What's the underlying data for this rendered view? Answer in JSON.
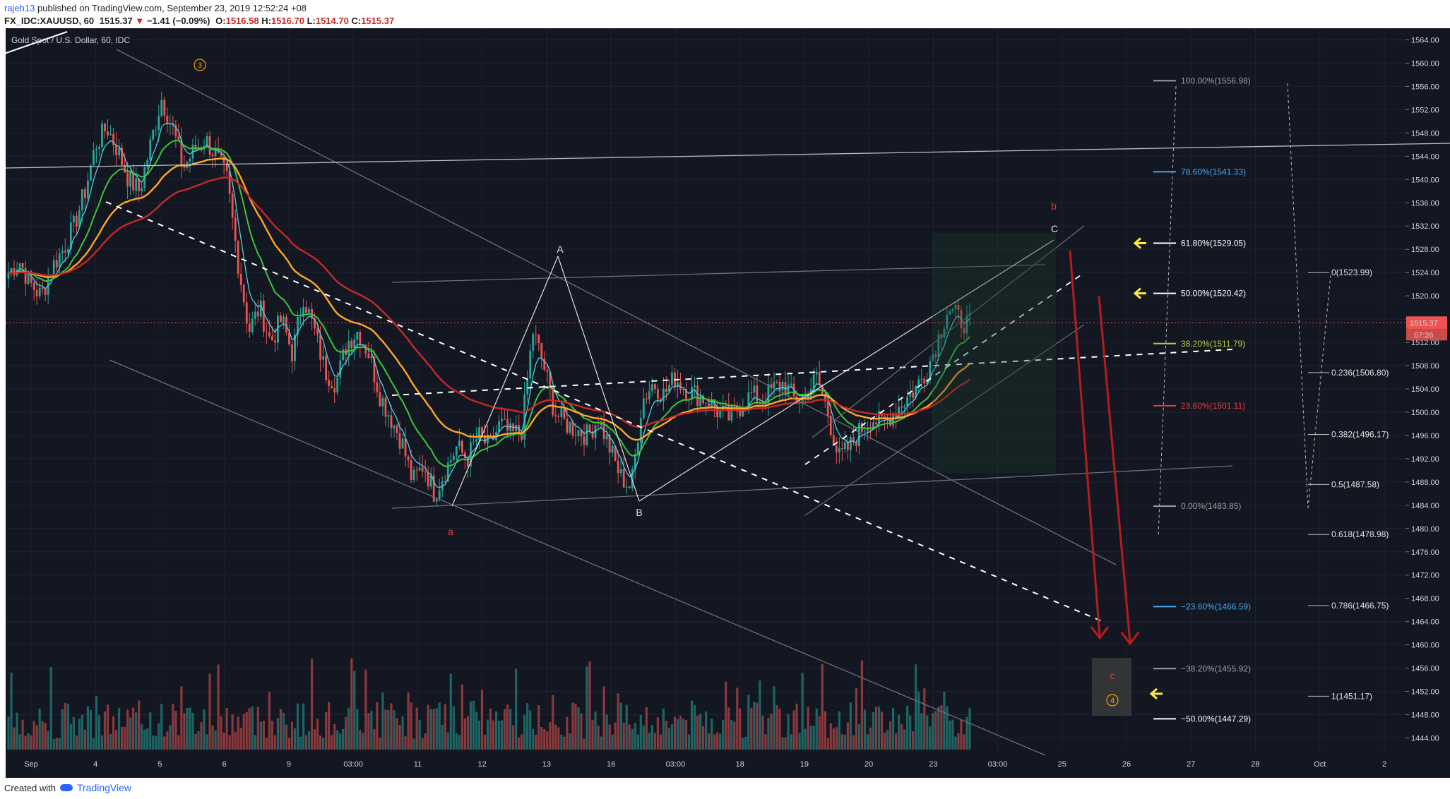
{
  "header": {
    "user": "rajeh13",
    "published": "published on TradingView.com, September 23, 2019 12:52:24 +08",
    "symbol": "FX_IDC:XAUUSD, 60",
    "last": "1515.37",
    "change": "−1.41 (−0.09%)",
    "o_label": "O:",
    "o_value": "1516.58",
    "h_label": "H:",
    "h_value": "1516.70",
    "l_label": "L:",
    "l_value": "1514.70",
    "c_label": "C:",
    "c_value": "1515.37"
  },
  "chart_title": "Gold Spot / U.S. Dollar, 60, IDC",
  "footer": {
    "created_with": "Created with",
    "brand": "TradingView"
  },
  "colors": {
    "background": "#131722",
    "bull": "#26a69a",
    "bear": "#ef5350",
    "ma_cyan": "#4dd0e1",
    "ma_green": "#3ec43e",
    "ma_orange": "#ffa726",
    "ma_red": "#c62828",
    "arrow_red": "#b71c1c",
    "marker_yellow": "#ffeb3b",
    "wave_orange": "#ff9800"
  },
  "chart_data": {
    "type": "candlestick",
    "ylim": [
      1442,
      1566
    ],
    "y_ticks": [
      "1564.00",
      "1560.00",
      "1556.00",
      "1552.00",
      "1548.00",
      "1544.00",
      "1540.00",
      "1536.00",
      "1532.00",
      "1528.00",
      "1524.00",
      "1520.00",
      "1516.00",
      "1512.00",
      "1508.00",
      "1504.00",
      "1500.00",
      "1496.00",
      "1492.00",
      "1488.00",
      "1484.00",
      "1480.00",
      "1476.00",
      "1472.00",
      "1468.00",
      "1464.00",
      "1460.00",
      "1456.00",
      "1452.00",
      "1448.00",
      "1444.00"
    ],
    "x_ticks": [
      "Sep",
      "4",
      "5",
      "6",
      "9",
      "03:00",
      "11",
      "12",
      "13",
      "16",
      "03:00",
      "18",
      "19",
      "20",
      "23",
      "03:00",
      "25",
      "26",
      "27",
      "28",
      "Oct",
      "2"
    ],
    "last_price": "1515.37",
    "countdown": "07:26",
    "closes_hourly": [
      1524,
      1526,
      1522,
      1520,
      1525,
      1528,
      1532,
      1538,
      1546,
      1549,
      1545,
      1540,
      1538,
      1546,
      1554,
      1549,
      1542,
      1545,
      1547,
      1544,
      1540,
      1526,
      1514,
      1518,
      1512,
      1516,
      1510,
      1520,
      1514,
      1507,
      1505,
      1512,
      1514,
      1510,
      1503,
      1499,
      1495,
      1488,
      1491,
      1486,
      1490,
      1494,
      1492,
      1496,
      1494,
      1498,
      1496,
      1497,
      1514,
      1508,
      1500,
      1498,
      1497,
      1496,
      1499,
      1494,
      1489,
      1487,
      1502,
      1505,
      1503,
      1506,
      1504,
      1503,
      1502,
      1500,
      1499,
      1501,
      1503,
      1502,
      1504,
      1505,
      1502,
      1503,
      1506,
      1500,
      1492,
      1494,
      1497,
      1499,
      1498,
      1500,
      1502,
      1504,
      1507,
      1512,
      1518,
      1516,
      1515
    ],
    "fib_retracement": [
      {
        "label": "100.00%(1556.98)",
        "price": 1556.98,
        "color": "#9e9e9e"
      },
      {
        "label": "78.60%(1541.33)",
        "price": 1541.33,
        "color": "#42a5f5"
      },
      {
        "label": "61.80%(1529.05)",
        "price": 1529.05,
        "color": "#ffffff"
      },
      {
        "label": "50.00%(1520.42)",
        "price": 1520.42,
        "color": "#ffffff"
      },
      {
        "label": "38.20%(1511.79)",
        "price": 1511.79,
        "color": "#c0ca33"
      },
      {
        "label": "23.60%(1501.11)",
        "price": 1501.11,
        "color": "#e53935"
      },
      {
        "label": "0.00%(1483.85)",
        "price": 1483.85,
        "color": "#9e9e9e"
      },
      {
        "label": "−23.60%(1466.59)",
        "price": 1466.59,
        "color": "#42a5f5"
      },
      {
        "label": "−38.20%(1455.92)",
        "price": 1455.92,
        "color": "#9e9e9e"
      },
      {
        "label": "−50.00%(1447.29)",
        "price": 1447.29,
        "color": "#ffffff"
      }
    ],
    "fib_extension": [
      {
        "label": "0(1523.99)",
        "price": 1523.99
      },
      {
        "label": "0.236(1506.80)",
        "price": 1506.8
      },
      {
        "label": "0.382(1496.17)",
        "price": 1496.17
      },
      {
        "label": "0.5(1487.58)",
        "price": 1487.58
      },
      {
        "label": "0.618(1478.98)",
        "price": 1478.98
      },
      {
        "label": "0.786(1466.75)",
        "price": 1466.75
      },
      {
        "label": "1(1451.17)",
        "price": 1451.17
      }
    ],
    "wave_labels": {
      "wave3": "3",
      "a_lower": "a",
      "A": "A",
      "B": "B",
      "C": "C",
      "b_upper": "b",
      "c_lower": "c",
      "wave4": "4"
    }
  }
}
